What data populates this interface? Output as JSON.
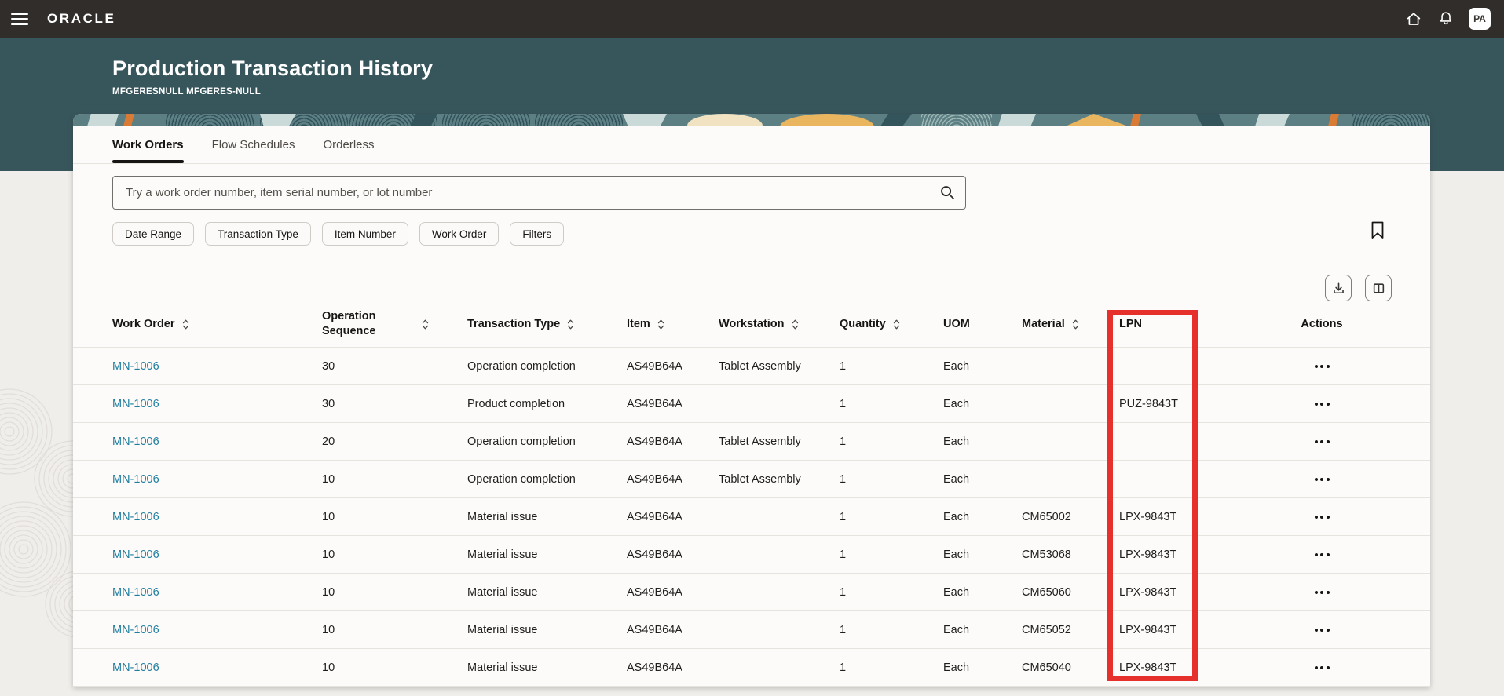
{
  "topbar": {
    "brand": "ORACLE",
    "avatar_initials": "PA"
  },
  "page_header": {
    "title": "Production Transaction History",
    "subtitle": "MFGERESNULL MFGERES-NULL"
  },
  "tabs": [
    {
      "label": "Work Orders",
      "active": true
    },
    {
      "label": "Flow Schedules",
      "active": false
    },
    {
      "label": "Orderless",
      "active": false
    }
  ],
  "search": {
    "placeholder": "Try a work order number, item serial number, or lot number",
    "value": ""
  },
  "filter_chips": [
    "Date Range",
    "Transaction Type",
    "Item Number",
    "Work Order",
    "Filters"
  ],
  "table": {
    "columns": [
      {
        "key": "work_order",
        "label": "Work Order",
        "sortable": true
      },
      {
        "key": "operation_sequence",
        "label": "Operation Sequence",
        "sortable": true
      },
      {
        "key": "transaction_type",
        "label": "Transaction Type",
        "sortable": true
      },
      {
        "key": "item",
        "label": "Item",
        "sortable": true
      },
      {
        "key": "workstation",
        "label": "Workstation",
        "sortable": true
      },
      {
        "key": "quantity",
        "label": "Quantity",
        "sortable": true
      },
      {
        "key": "uom",
        "label": "UOM",
        "sortable": false
      },
      {
        "key": "material",
        "label": "Material",
        "sortable": true
      },
      {
        "key": "lpn",
        "label": "LPN",
        "sortable": false
      },
      {
        "key": "actions",
        "label": "Actions",
        "sortable": false
      }
    ],
    "rows": [
      {
        "work_order": "MN-1006",
        "operation_sequence": "30",
        "transaction_type": "Operation completion",
        "item": "AS49B64A",
        "workstation": "Tablet Assembly",
        "quantity": "1",
        "uom": "Each",
        "material": "",
        "lpn": ""
      },
      {
        "work_order": "MN-1006",
        "operation_sequence": "30",
        "transaction_type": "Product completion",
        "item": "AS49B64A",
        "workstation": "",
        "quantity": "1",
        "uom": "Each",
        "material": "",
        "lpn": "PUZ-9843T"
      },
      {
        "work_order": "MN-1006",
        "operation_sequence": "20",
        "transaction_type": "Operation completion",
        "item": "AS49B64A",
        "workstation": "Tablet Assembly",
        "quantity": "1",
        "uom": "Each",
        "material": "",
        "lpn": ""
      },
      {
        "work_order": "MN-1006",
        "operation_sequence": "10",
        "transaction_type": "Operation completion",
        "item": "AS49B64A",
        "workstation": "Tablet Assembly",
        "quantity": "1",
        "uom": "Each",
        "material": "",
        "lpn": ""
      },
      {
        "work_order": "MN-1006",
        "operation_sequence": "10",
        "transaction_type": "Material issue",
        "item": "AS49B64A",
        "workstation": "",
        "quantity": "1",
        "uom": "Each",
        "material": "CM65002",
        "lpn": "LPX-9843T"
      },
      {
        "work_order": "MN-1006",
        "operation_sequence": "10",
        "transaction_type": "Material issue",
        "item": "AS49B64A",
        "workstation": "",
        "quantity": "1",
        "uom": "Each",
        "material": "CM53068",
        "lpn": "LPX-9843T"
      },
      {
        "work_order": "MN-1006",
        "operation_sequence": "10",
        "transaction_type": "Material issue",
        "item": "AS49B64A",
        "workstation": "",
        "quantity": "1",
        "uom": "Each",
        "material": "CM65060",
        "lpn": "LPX-9843T"
      },
      {
        "work_order": "MN-1006",
        "operation_sequence": "10",
        "transaction_type": "Material issue",
        "item": "AS49B64A",
        "workstation": "",
        "quantity": "1",
        "uom": "Each",
        "material": "CM65052",
        "lpn": "LPX-9843T"
      },
      {
        "work_order": "MN-1006",
        "operation_sequence": "10",
        "transaction_type": "Material issue",
        "item": "AS49B64A",
        "workstation": "",
        "quantity": "1",
        "uom": "Each",
        "material": "CM65040",
        "lpn": "LPX-9843T"
      }
    ]
  },
  "highlight_box": {
    "target_column": "LPN",
    "color": "#E5302C"
  },
  "icons": {
    "menu": "hamburger-icon",
    "home": "home-icon",
    "notifications": "bell-icon",
    "search": "magnifier-icon",
    "bookmark": "bookmark-icon",
    "download": "download-icon",
    "manage_columns": "columns-icon",
    "sort": "up-down-chevrons",
    "row_actions": "horizontal-ellipsis"
  },
  "colors": {
    "topbar_bg": "#312D2A",
    "hero_bg": "#37565C",
    "page_bg": "#F0EEEB",
    "card_bg": "#FCFBFA",
    "link": "#1F7E9E",
    "highlight_red": "#E5302C"
  }
}
